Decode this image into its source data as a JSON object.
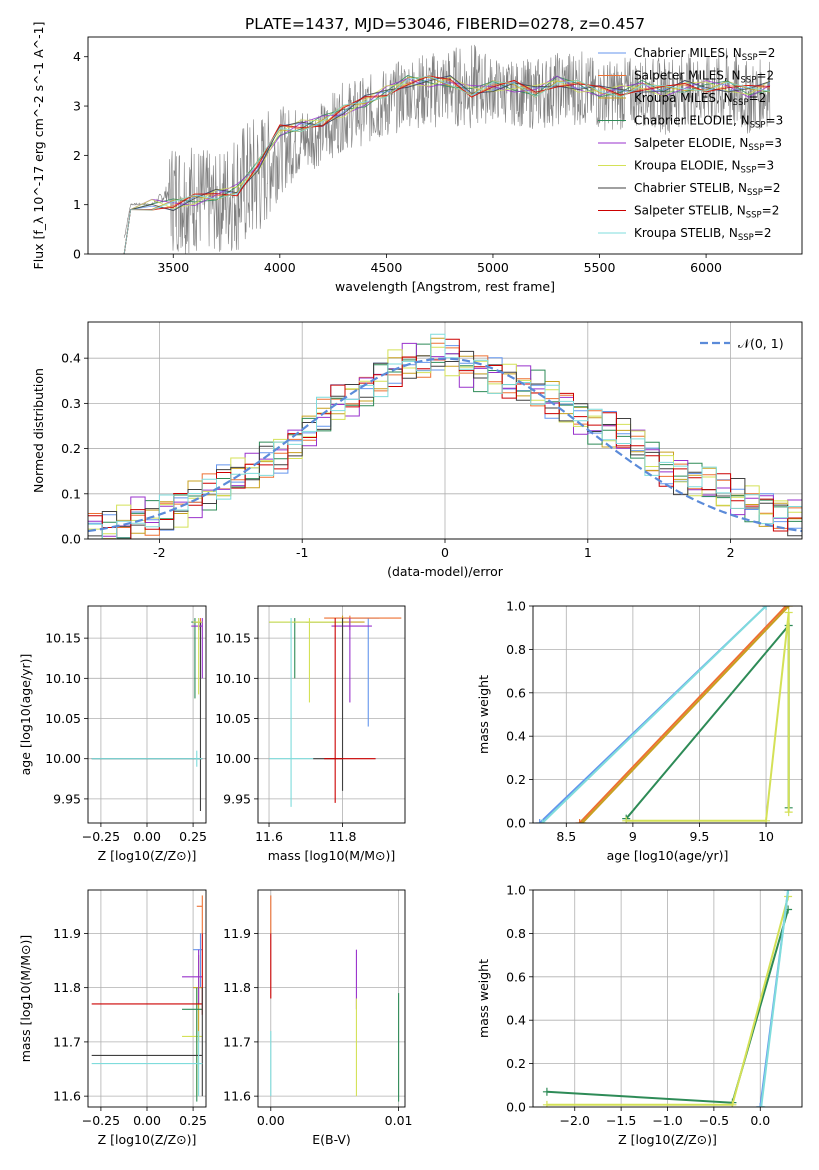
{
  "figure": {
    "title": "PLATE=1437, MJD=53046, FIBERID=0278, z=0.457"
  },
  "series_styles": [
    {
      "name": "Chabrier MILES, N_SSP=2",
      "legend_main": "Chabrier MILES, N",
      "legend_sub": "SSP",
      "legend_tail": "=2",
      "color": "#6495ed"
    },
    {
      "name": "Salpeter MILES, N_SSP=2",
      "legend_main": "Salpeter MILES, N",
      "legend_sub": "SSP",
      "legend_tail": "=2",
      "color": "#ed7033"
    },
    {
      "name": "Kroupa MILES, N_SSP=2",
      "legend_main": "Kroupa MILES, N",
      "legend_sub": "SSP",
      "legend_tail": "=2",
      "color": "#c8a020"
    },
    {
      "name": "Chabrier ELODIE, N_SSP=3",
      "legend_main": "Chabrier ELODIE, N",
      "legend_sub": "SSP",
      "legend_tail": "=3",
      "color": "#2e8b57"
    },
    {
      "name": "Salpeter ELODIE, N_SSP=3",
      "legend_main": "Salpeter ELODIE, N",
      "legend_sub": "SSP",
      "legend_tail": "=3",
      "color": "#9932cc"
    },
    {
      "name": "Kroupa ELODIE, N_SSP=3",
      "legend_main": "Kroupa ELODIE, N",
      "legend_sub": "SSP",
      "legend_tail": "=3",
      "color": "#d4e157"
    },
    {
      "name": "Chabrier STELIB, N_SSP=2",
      "legend_main": "Chabrier STELIB, N",
      "legend_sub": "SSP",
      "legend_tail": "=2",
      "color": "#404040"
    },
    {
      "name": "Salpeter STELIB, N_SSP=2",
      "legend_main": "Salpeter STELIB, N",
      "legend_sub": "SSP",
      "legend_tail": "=2",
      "color": "#cc0000"
    },
    {
      "name": "Kroupa STELIB, N_SSP=2",
      "legend_main": "Kroupa STELIB, N",
      "legend_sub": "SSP",
      "legend_tail": "=2",
      "color": "#7fdcdc"
    }
  ],
  "chart_data": [
    {
      "id": "spectrum",
      "type": "line",
      "xlabel": "wavelength [Angstrom, rest frame]",
      "ylabel": "Flux [f_λ 10^-17 erg cm^-2 s^-1 A^-1]",
      "xlim": [
        3100,
        6450
      ],
      "ylim": [
        0,
        4.4
      ],
      "xticks": [
        3500,
        4000,
        4500,
        5000,
        5500,
        6000
      ],
      "yticks": [
        0,
        1,
        2,
        3,
        4
      ],
      "legend_position": "upper right",
      "grid": false,
      "data_color": "#808080",
      "observed_envelope": {
        "x": [
          3270,
          3300,
          3400,
          3500,
          3600,
          3700,
          3800,
          3900,
          4000,
          4100,
          4200,
          4300,
          4400,
          4500,
          4600,
          4700,
          4800,
          4900,
          5000,
          5100,
          5200,
          5300,
          5400,
          5500,
          5600,
          5700,
          5800,
          5900,
          6000,
          6100,
          6200,
          6300
        ],
        "low": [
          0.0,
          0.9,
          0.9,
          0.0,
          0.0,
          0.0,
          0.0,
          0.2,
          1.2,
          1.6,
          1.8,
          2.1,
          2.2,
          2.3,
          2.6,
          2.5,
          2.6,
          2.5,
          2.7,
          2.6,
          2.5,
          2.6,
          2.6,
          2.5,
          2.5,
          2.6,
          2.4,
          2.6,
          2.6,
          2.5,
          2.4,
          2.6
        ],
        "high": [
          0.6,
          1.1,
          1.1,
          2.4,
          2.3,
          2.0,
          2.6,
          2.9,
          3.0,
          3.0,
          3.1,
          3.5,
          3.6,
          3.8,
          4.0,
          4.1,
          4.2,
          4.3,
          4.0,
          3.9,
          4.0,
          4.1,
          4.2,
          3.9,
          4.0,
          4.0,
          4.0,
          4.1,
          4.0,
          4.2,
          3.9,
          4.0
        ]
      },
      "model_x": [
        3270,
        3300,
        3400,
        3500,
        3600,
        3700,
        3800,
        3900,
        4000,
        4100,
        4200,
        4300,
        4400,
        4500,
        4600,
        4700,
        4800,
        4900,
        5000,
        5100,
        5200,
        5300,
        5400,
        5500,
        5600,
        5700,
        5800,
        5900,
        6000,
        6100,
        6200,
        6300
      ],
      "model_y": [
        0.0,
        0.9,
        1.0,
        1.0,
        1.1,
        1.2,
        1.3,
        1.8,
        2.5,
        2.6,
        2.7,
        2.9,
        3.1,
        3.3,
        3.5,
        3.5,
        3.5,
        3.3,
        3.4,
        3.4,
        3.3,
        3.5,
        3.4,
        3.3,
        3.3,
        3.4,
        3.3,
        3.4,
        3.4,
        3.4,
        3.3,
        3.4
      ]
    },
    {
      "id": "residuals",
      "type": "line",
      "xlabel": "(data-model)/error",
      "ylabel": "Normed distribution",
      "xlim": [
        -2.5,
        2.5
      ],
      "ylim": [
        0,
        0.48
      ],
      "xticks": [
        -2,
        -1,
        0,
        1,
        2
      ],
      "yticks": [
        0.0,
        0.1,
        0.2,
        0.3,
        0.4
      ],
      "grid": true,
      "legend": "𝒩(0, 1)",
      "legend_position": "upper right",
      "gaussian_color": "#5b8bd9",
      "hist_bins": [
        -2.5,
        -2.4,
        -2.3,
        -2.2,
        -2.1,
        -2.0,
        -1.9,
        -1.8,
        -1.7,
        -1.6,
        -1.5,
        -1.4,
        -1.3,
        -1.2,
        -1.1,
        -1.0,
        -0.9,
        -0.8,
        -0.7,
        -0.6,
        -0.5,
        -0.4,
        -0.3,
        -0.2,
        -0.1,
        0.0,
        0.1,
        0.2,
        0.3,
        0.4,
        0.5,
        0.6,
        0.7,
        0.8,
        0.9,
        1.0,
        1.1,
        1.2,
        1.3,
        1.4,
        1.5,
        1.6,
        1.7,
        1.8,
        1.9,
        2.0,
        2.1,
        2.2,
        2.3,
        2.4
      ],
      "hist_base": [
        0.02,
        0.02,
        0.03,
        0.05,
        0.05,
        0.06,
        0.07,
        0.09,
        0.1,
        0.12,
        0.14,
        0.15,
        0.18,
        0.19,
        0.21,
        0.24,
        0.27,
        0.3,
        0.31,
        0.33,
        0.36,
        0.38,
        0.39,
        0.39,
        0.41,
        0.4,
        0.38,
        0.37,
        0.36,
        0.35,
        0.34,
        0.33,
        0.31,
        0.29,
        0.27,
        0.25,
        0.24,
        0.23,
        0.21,
        0.18,
        0.16,
        0.14,
        0.13,
        0.12,
        0.1,
        0.09,
        0.08,
        0.07,
        0.06,
        0.05
      ]
    },
    {
      "id": "age_vs_Z",
      "type": "scatter",
      "xlabel": "Z [log10(Z/Z⊙)]",
      "ylabel": "age  [log10(age/yr)]",
      "xlim": [
        -0.32,
        0.32
      ],
      "ylim": [
        9.92,
        10.19
      ],
      "xticks": [
        -0.25,
        0.0,
        0.25
      ],
      "xtick_labels": [
        "−0.25",
        "0.00",
        "0.25"
      ],
      "yticks": [
        9.95,
        10.0,
        10.05,
        10.1,
        10.15
      ],
      "grid": true,
      "errorbars": [
        {
          "series": 0,
          "x": 0.28,
          "y": 10.17,
          "x0": 0.25,
          "x1": 0.3,
          "y0": 10.16,
          "y1": 10.175
        },
        {
          "series": 1,
          "x": 0.29,
          "y": 10.17,
          "x0": 0.25,
          "x1": 0.3,
          "y0": 10.16,
          "y1": 10.175
        },
        {
          "series": 3,
          "x": 0.26,
          "y": 10.17,
          "x0": 0.24,
          "x1": 0.3,
          "y0": 10.075,
          "y1": 10.175
        },
        {
          "series": 6,
          "x": 0.29,
          "y": 10.0,
          "x0": -0.3,
          "x1": 0.3,
          "y0": 9.935,
          "y1": 10.17
        },
        {
          "series": 8,
          "x": 0.27,
          "y": 10.0,
          "x0": -0.3,
          "x1": 0.3,
          "y0": 9.99,
          "y1": 10.01
        },
        {
          "series": 4,
          "x": 0.3,
          "y": 10.165,
          "x0": 0.24,
          "x1": 0.3,
          "y0": 10.1,
          "y1": 10.175
        },
        {
          "series": 5,
          "x": 0.28,
          "y": 10.17,
          "x0": 0.25,
          "x1": 0.3,
          "y0": 10.08,
          "y1": 10.175
        }
      ]
    },
    {
      "id": "age_vs_mass",
      "type": "scatter",
      "xlabel": "mass [log10(M/M⊙)]",
      "ylabel": "",
      "xlim": [
        11.57,
        11.97
      ],
      "ylim": [
        9.92,
        10.19
      ],
      "xticks": [
        11.6,
        11.8
      ],
      "yticks": [
        9.95,
        10.0,
        10.05,
        10.1,
        10.15
      ],
      "grid": true,
      "errorbars": [
        {
          "series": 0,
          "x": 11.87,
          "y": 10.175,
          "x0": 11.8,
          "x1": 11.9,
          "y0": 10.04,
          "y1": 10.175
        },
        {
          "series": 1,
          "x": 11.82,
          "y": 10.175,
          "x0": 11.75,
          "x1": 11.96,
          "y0": 10.16,
          "y1": 10.178
        },
        {
          "series": 2,
          "x": 11.8,
          "y": 10.17,
          "x0": 11.7,
          "x1": 11.86,
          "y0": 10.1,
          "y1": 10.178
        },
        {
          "series": 3,
          "x": 11.67,
          "y": 10.17,
          "x0": 11.6,
          "x1": 11.8,
          "y0": 10.1,
          "y1": 10.175
        },
        {
          "series": 4,
          "x": 11.82,
          "y": 10.165,
          "x0": 11.77,
          "x1": 11.88,
          "y0": 10.07,
          "y1": 10.175
        },
        {
          "series": 5,
          "x": 11.71,
          "y": 10.17,
          "x0": 11.6,
          "x1": 11.8,
          "y0": 10.07,
          "y1": 10.175
        },
        {
          "series": 6,
          "x": 11.8,
          "y": 10.0,
          "x0": 11.72,
          "x1": 11.8,
          "y0": 9.96,
          "y1": 10.175
        },
        {
          "series": 7,
          "x": 11.78,
          "y": 10.0,
          "x0": 11.75,
          "x1": 11.89,
          "y0": 9.945,
          "y1": 10.175
        },
        {
          "series": 8,
          "x": 11.66,
          "y": 10.0,
          "x0": 11.6,
          "x1": 11.72,
          "y0": 9.94,
          "y1": 10.175
        }
      ]
    },
    {
      "id": "weight_vs_age",
      "type": "line",
      "xlabel": "age  [log10(age/yr)]",
      "ylabel": "mass weight",
      "xlim": [
        8.25,
        10.27
      ],
      "ylim": [
        0,
        1.0
      ],
      "xticks": [
        8.5,
        9.0,
        9.5,
        10.0
      ],
      "yticks": [
        0.0,
        0.2,
        0.4,
        0.6,
        0.8,
        1.0
      ],
      "grid": true,
      "lines": [
        {
          "series": 0,
          "x": [
            8.3,
            10.0
          ],
          "y": [
            0.0,
            1.0
          ]
        },
        {
          "series": 8,
          "x": [
            8.32,
            10.0
          ],
          "y": [
            0.0,
            1.0
          ]
        },
        {
          "series": 1,
          "x": [
            8.6,
            10.15
          ],
          "y": [
            0.0,
            1.0
          ]
        },
        {
          "series": 2,
          "x": [
            8.62,
            10.17
          ],
          "y": [
            0.0,
            1.0
          ]
        },
        {
          "series": 3,
          "x": [
            8.95,
            10.17,
            10.17
          ],
          "y": [
            0.02,
            0.91,
            0.07
          ]
        },
        {
          "series": 5,
          "x": [
            8.95,
            10.0,
            10.17,
            10.17
          ],
          "y": [
            0.01,
            0.01,
            0.97,
            0.05
          ]
        }
      ]
    },
    {
      "id": "mass_vs_Z",
      "type": "scatter",
      "xlabel": "Z [log10(Z/Z⊙)]",
      "ylabel": "mass [log10(M/M⊙)]",
      "xlim": [
        -0.32,
        0.32
      ],
      "ylim": [
        11.58,
        11.98
      ],
      "xticks": [
        -0.25,
        0.0,
        0.25
      ],
      "xtick_labels": [
        "−0.25",
        "0.00",
        "0.25"
      ],
      "yticks": [
        11.6,
        11.7,
        11.8,
        11.9
      ],
      "grid": true,
      "errorbars": [
        {
          "series": 0,
          "x": 0.29,
          "y": 11.87,
          "x0": 0.25,
          "x1": 0.3,
          "y0": 11.8,
          "y1": 11.9
        },
        {
          "series": 1,
          "x": 0.3,
          "y": 11.95,
          "x0": 0.27,
          "x1": 0.3,
          "y0": 11.9,
          "y1": 11.97
        },
        {
          "series": 2,
          "x": 0.28,
          "y": 11.8,
          "x0": 0.25,
          "x1": 0.3,
          "y0": 11.7,
          "y1": 11.86
        },
        {
          "series": 4,
          "x": 0.28,
          "y": 11.82,
          "x0": 0.19,
          "x1": 0.3,
          "y0": 11.77,
          "y1": 11.87
        },
        {
          "series": 5,
          "x": 0.27,
          "y": 11.71,
          "x0": 0.19,
          "x1": 0.3,
          "y0": 11.6,
          "y1": 11.8
        },
        {
          "series": 3,
          "x": 0.27,
          "y": 11.76,
          "x0": 0.19,
          "x1": 0.3,
          "y0": 11.59,
          "y1": 11.8
        },
        {
          "series": 7,
          "x": 0.3,
          "y": 11.77,
          "x0": -0.3,
          "x1": 0.3,
          "y0": 11.75,
          "y1": 11.9
        },
        {
          "series": 6,
          "x": 0.3,
          "y": 11.675,
          "x0": -0.3,
          "x1": 0.3,
          "y0": 11.6,
          "y1": 11.8
        },
        {
          "series": 8,
          "x": 0.28,
          "y": 11.66,
          "x0": -0.3,
          "x1": 0.3,
          "y0": 11.6,
          "y1": 11.72
        }
      ]
    },
    {
      "id": "mass_vs_ebv",
      "type": "scatter",
      "xlabel": "E(B-V)",
      "ylabel": "",
      "xlim": [
        -0.001,
        0.0105
      ],
      "ylim": [
        11.58,
        11.98
      ],
      "xticks": [
        0.0,
        0.01
      ],
      "xtick_labels": [
        "0.00",
        "0.01"
      ],
      "yticks": [
        11.6,
        11.7,
        11.8,
        11.9
      ],
      "grid": true,
      "errorbars": [
        {
          "series": 1,
          "x": 0.0,
          "y": 11.95,
          "y0": 11.9,
          "y1": 11.97
        },
        {
          "series": 7,
          "x": 0.0,
          "y": 11.85,
          "y0": 11.78,
          "y1": 11.9
        },
        {
          "series": 8,
          "x": 0.0,
          "y": 11.66,
          "y0": 11.6,
          "y1": 11.72
        },
        {
          "series": 4,
          "x": 0.0067,
          "y": 11.82,
          "y0": 11.76,
          "y1": 11.87
        },
        {
          "series": 5,
          "x": 0.0067,
          "y": 11.71,
          "y0": 11.6,
          "y1": 11.78
        },
        {
          "series": 3,
          "x": 0.01,
          "y": 11.7,
          "y0": 11.59,
          "y1": 11.79
        }
      ]
    },
    {
      "id": "weight_vs_Z",
      "type": "line",
      "xlabel": "Z [log10(Z/Z⊙)]",
      "ylabel": "mass weight",
      "xlim": [
        -2.45,
        0.45
      ],
      "ylim": [
        0,
        1.0
      ],
      "xticks": [
        -2.0,
        -1.5,
        -1.0,
        -0.5,
        0.0
      ],
      "xtick_labels": [
        "−2.0",
        "−1.5",
        "−1.0",
        "−0.5",
        "0.0"
      ],
      "yticks": [
        0.0,
        0.2,
        0.4,
        0.6,
        0.8,
        1.0
      ],
      "grid": true,
      "lines": [
        {
          "series": 3,
          "x": [
            -2.3,
            -0.3,
            0.3
          ],
          "y": [
            0.07,
            0.02,
            0.91
          ]
        },
        {
          "series": 5,
          "x": [
            -2.3,
            -0.3,
            0.3
          ],
          "y": [
            0.01,
            0.01,
            0.97
          ]
        },
        {
          "series": 0,
          "x": [
            0.0,
            0.0,
            0.3
          ],
          "y": [
            0.0,
            0.0,
            1.0
          ]
        },
        {
          "series": 8,
          "x": [
            0.01,
            0.01,
            0.3
          ],
          "y": [
            0.0,
            0.0,
            1.0
          ]
        }
      ]
    }
  ]
}
